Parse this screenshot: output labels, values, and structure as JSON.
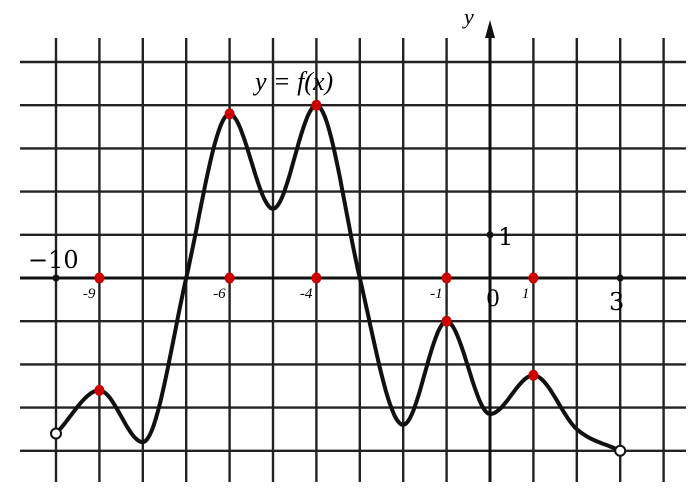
{
  "chart_data": {
    "type": "line",
    "title": "y = f(x)",
    "ylabel": "y",
    "xlabel": "",
    "xlim": [
      -10.8,
      4.5
    ],
    "ylim": [
      -4.9,
      6.0
    ],
    "grid": true,
    "axis_labels": {
      "x_left": "−10",
      "origin": "0",
      "x_right": "3",
      "y_unit": "1"
    },
    "marked_x_labels": [
      {
        "x": -9,
        "label": "-9"
      },
      {
        "x": -6,
        "label": "-6"
      },
      {
        "x": -4,
        "label": "-4"
      },
      {
        "x": -1,
        "label": "-1"
      },
      {
        "x": 1,
        "label": "1"
      }
    ],
    "series": [
      {
        "points": [
          {
            "x": -10,
            "y": -3.6,
            "open": true
          },
          {
            "x": -9,
            "y": -2.6,
            "extremum": true
          },
          {
            "x": -8,
            "y": -3.8,
            "extremum": true
          },
          {
            "x": -7,
            "y": 0
          },
          {
            "x": -6,
            "y": 3.8,
            "extremum": true
          },
          {
            "x": -5,
            "y": 1.6,
            "extremum": true
          },
          {
            "x": -4,
            "y": 4.0,
            "extremum": true
          },
          {
            "x": -3,
            "y": 0
          },
          {
            "x": -2,
            "y": -3.4,
            "extremum": true
          },
          {
            "x": -1,
            "y": -1.0,
            "extremum": true
          },
          {
            "x": 0,
            "y": -3.15,
            "extremum": true
          },
          {
            "x": 1,
            "y": -2.25,
            "extremum": true
          },
          {
            "x": 2,
            "y": -3.5
          },
          {
            "x": 3,
            "y": -4.0,
            "open": true
          }
        ]
      }
    ],
    "highlighted_points": [
      {
        "x": -9,
        "y": -2.6
      },
      {
        "x": -6,
        "y": 3.8
      },
      {
        "x": -4,
        "y": 4.0
      },
      {
        "x": -1,
        "y": -1.0
      },
      {
        "x": 1,
        "y": -2.25
      },
      {
        "x": -9,
        "y": 0
      },
      {
        "x": -6,
        "y": 0
      },
      {
        "x": -4,
        "y": 0
      },
      {
        "x": -1,
        "y": 0
      },
      {
        "x": 1,
        "y": 0
      }
    ],
    "colors": {
      "curve": "#111111",
      "grid": "#222222",
      "highlight": "#cc0000"
    }
  }
}
